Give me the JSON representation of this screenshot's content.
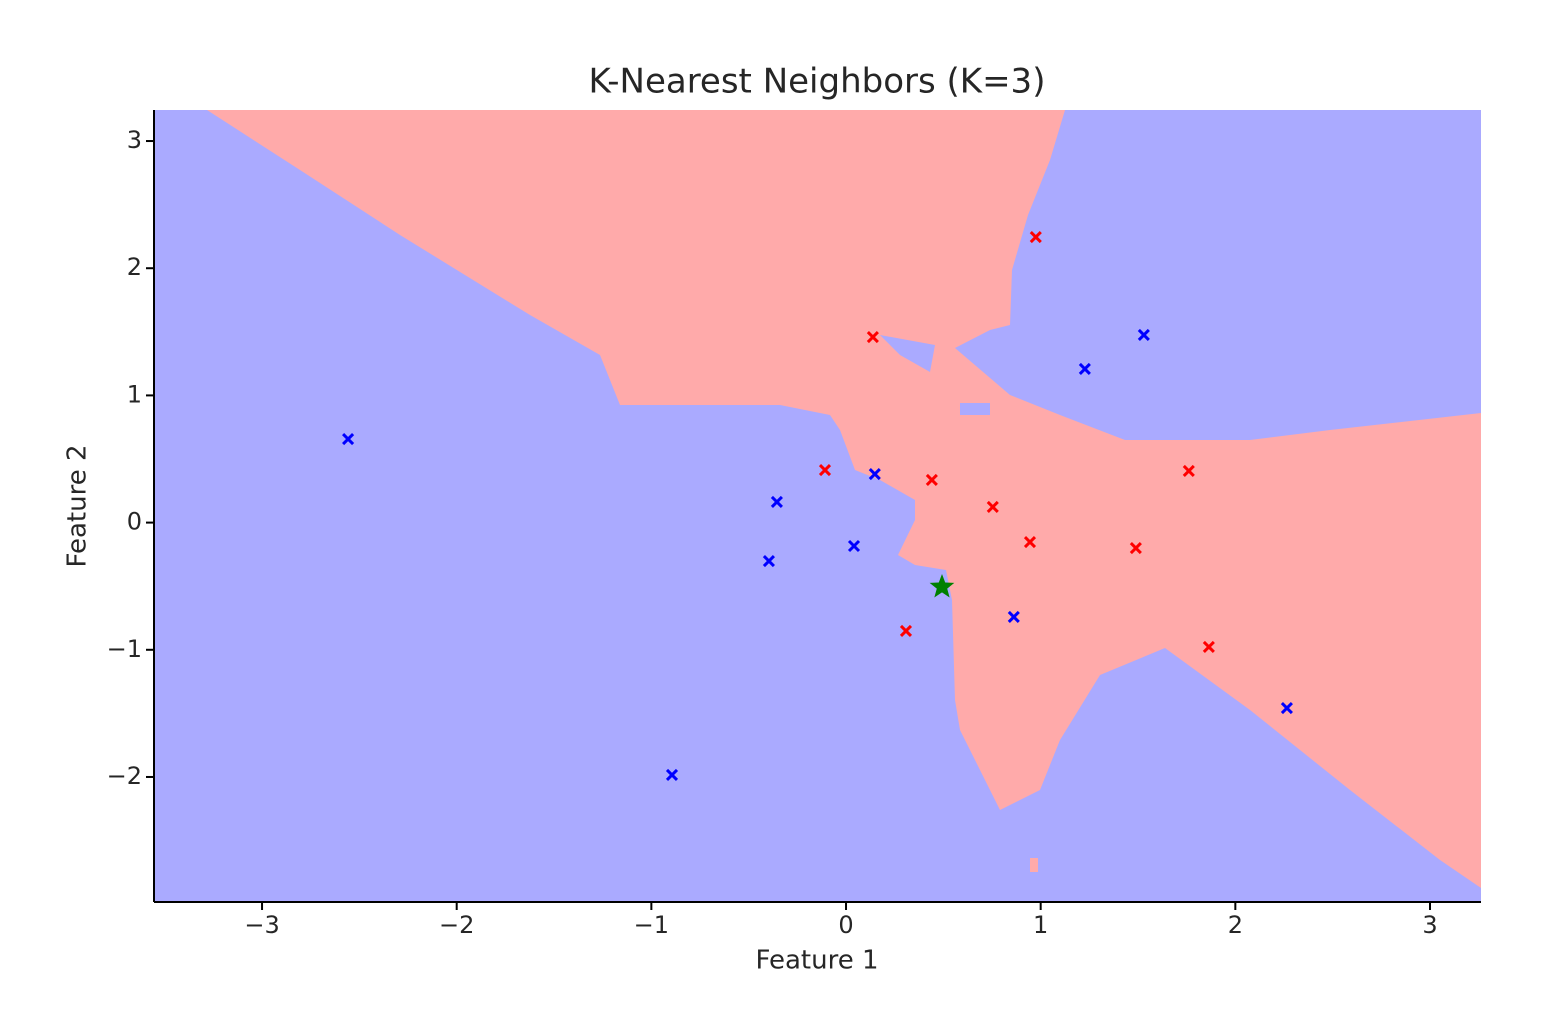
{
  "chart_data": {
    "type": "scatter",
    "title": "K-Nearest Neighbors (K=3)",
    "xlabel": "Feature 1",
    "ylabel": "Feature 2",
    "xlim": [
      -3.555,
      3.262
    ],
    "ylim": [
      -2.983,
      3.244
    ],
    "xticks": [
      {
        "value": -3,
        "label": "−3"
      },
      {
        "value": -2,
        "label": "−2"
      },
      {
        "value": -1,
        "label": "−1"
      },
      0,
      1,
      2,
      3
    ],
    "yticks": [
      {
        "value": -2,
        "label": "−2"
      },
      {
        "value": -1,
        "label": "−1"
      },
      0,
      1,
      2,
      3
    ],
    "series": [
      {
        "color": "#ff0000",
        "marker": "x",
        "x": [
          0.975,
          0.138,
          -0.108,
          0.441,
          0.754,
          0.945,
          1.489,
          1.761,
          0.308,
          1.864
        ],
        "values": [
          2.245,
          1.459,
          0.413,
          0.335,
          0.123,
          -0.153,
          -0.2,
          0.406,
          -0.852,
          -0.978
        ]
      },
      {
        "color": "#0000ff",
        "marker": "x",
        "x": [
          -2.558,
          -0.894,
          -0.355,
          -0.396,
          0.041,
          0.148,
          0.862,
          1.227,
          1.53,
          2.265
        ],
        "values": [
          0.657,
          -1.984,
          0.162,
          -0.302,
          -0.184,
          0.382,
          -0.742,
          1.208,
          1.475,
          -1.458
        ]
      },
      {
        "color": "#008000",
        "marker": "star",
        "x": [
          0.493
        ],
        "values": [
          -0.506
        ]
      }
    ]
  }
}
